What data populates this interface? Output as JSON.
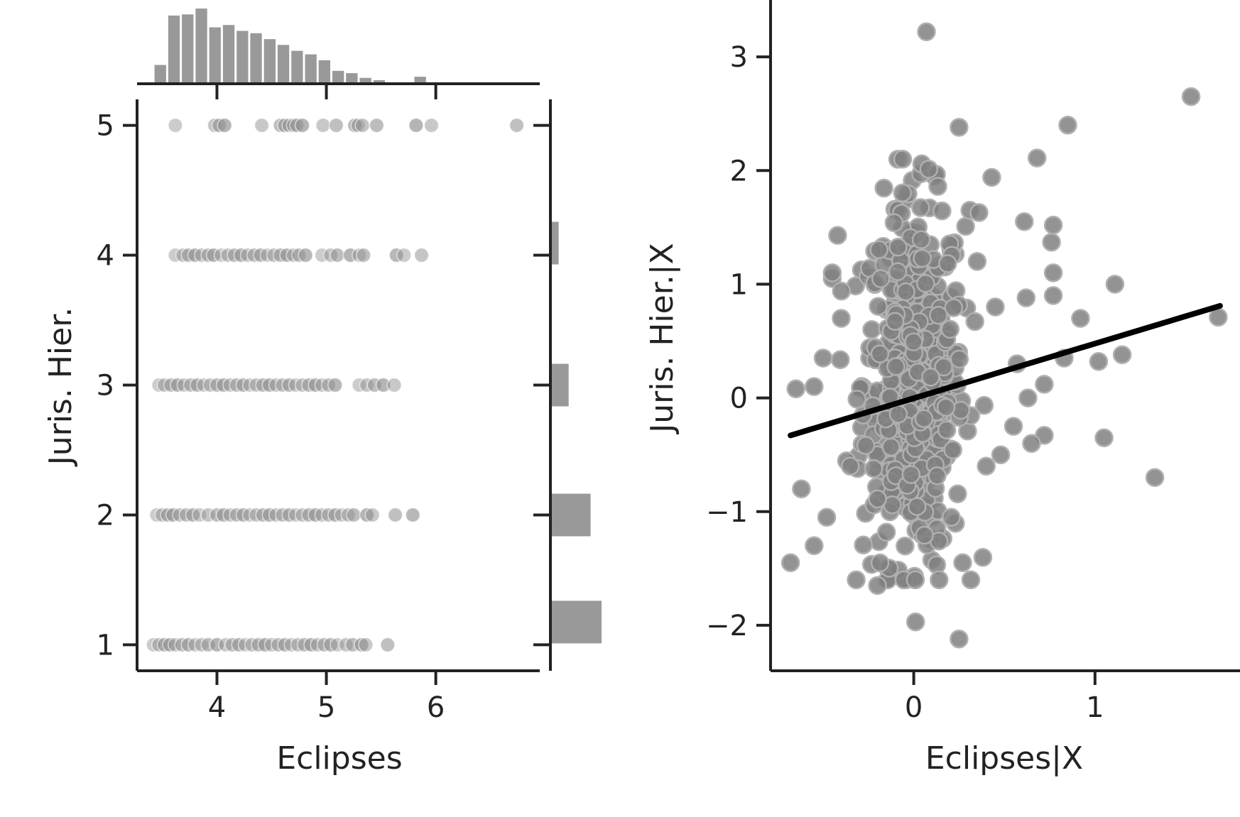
{
  "chart_data": [
    {
      "type": "scatter",
      "panel": "joint",
      "xlabel": "Eclipses",
      "ylabel": "Juris. Hier.",
      "xlim": [
        3.27,
        6.95
      ],
      "ylim": [
        0.8,
        5.2
      ],
      "xticks": [
        4,
        5,
        6
      ],
      "yticks": [
        1,
        2,
        3,
        4,
        5
      ],
      "point_color": "#8f8f8f",
      "rows": [
        {
          "y": 5,
          "x": [
            3.62,
            3.98,
            4.02,
            4.07,
            4.41,
            4.58,
            4.62,
            4.66,
            4.7,
            4.73,
            4.78,
            4.97,
            5.09,
            5.26,
            5.29,
            5.33,
            5.46,
            5.82,
            5.96,
            6.74
          ]
        },
        {
          "y": 4,
          "x": [
            3.62,
            3.69,
            3.74,
            3.8,
            3.86,
            3.92,
            3.97,
            4.04,
            4.1,
            4.16,
            4.22,
            4.28,
            4.34,
            4.4,
            4.46,
            4.52,
            4.58,
            4.64,
            4.7,
            4.75,
            4.81,
            4.96,
            5.04,
            5.1,
            5.22,
            5.3,
            5.34,
            5.64,
            5.71,
            5.87
          ]
        },
        {
          "y": 3,
          "x": [
            3.47,
            3.52,
            3.58,
            3.64,
            3.7,
            3.76,
            3.82,
            3.88,
            3.94,
            4.0,
            4.06,
            4.12,
            4.18,
            4.24,
            4.3,
            4.36,
            4.42,
            4.48,
            4.54,
            4.6,
            4.66,
            4.72,
            4.78,
            4.84,
            4.9,
            4.96,
            5.02,
            5.08,
            5.3,
            5.37,
            5.44,
            5.52,
            5.62
          ]
        },
        {
          "y": 2,
          "x": [
            3.45,
            3.5,
            3.55,
            3.6,
            3.66,
            3.72,
            3.78,
            3.84,
            3.92,
            4.0,
            4.06,
            4.12,
            4.18,
            4.24,
            4.3,
            4.36,
            4.42,
            4.48,
            4.54,
            4.6,
            4.66,
            4.72,
            4.78,
            4.84,
            4.9,
            4.96,
            5.02,
            5.08,
            5.14,
            5.2,
            5.25,
            5.37,
            5.42,
            5.63,
            5.79
          ]
        },
        {
          "y": 1,
          "x": [
            3.42,
            3.47,
            3.52,
            3.57,
            3.62,
            3.68,
            3.74,
            3.8,
            3.86,
            3.92,
            4.0,
            4.08,
            4.14,
            4.2,
            4.26,
            4.32,
            4.38,
            4.44,
            4.5,
            4.56,
            4.62,
            4.68,
            4.74,
            4.8,
            4.86,
            4.92,
            4.98,
            5.04,
            5.1,
            5.18,
            5.24,
            5.32,
            5.36,
            5.56
          ]
        }
      ]
    },
    {
      "type": "bar",
      "panel": "marginal-x",
      "orientation": "vertical",
      "bin_start": 3.42,
      "bin_width": 0.125,
      "counts": [
        16,
        58,
        59,
        64,
        48,
        50,
        45,
        43,
        38,
        33,
        28,
        25,
        20,
        11,
        9,
        5,
        3,
        0,
        0,
        6
      ],
      "bar_color": "#999999"
    },
    {
      "type": "bar",
      "panel": "marginal-y",
      "orientation": "horizontal",
      "categories": [
        1,
        2,
        3,
        4,
        5
      ],
      "values": [
        56,
        44,
        20,
        9,
        0
      ],
      "bar_color": "#999999"
    },
    {
      "type": "scatter",
      "panel": "partial-regression",
      "xlabel": "Eclipses|X",
      "ylabel": "Juris. Hier.|X",
      "xlim": [
        -0.79,
        1.8
      ],
      "ylim": [
        -2.4,
        3.5
      ],
      "xticks": [
        0,
        1
      ],
      "yticks": [
        -2,
        -1,
        0,
        1,
        2,
        3
      ],
      "ytick_labels": [
        "−2",
        "−1",
        "0",
        "1",
        "2",
        "3"
      ],
      "point_color": "#808080",
      "fit_line": {
        "x": [
          -0.68,
          1.69
        ],
        "y": [
          -0.33,
          0.81
        ],
        "color": "#000000"
      },
      "outliers": [
        {
          "x": 0.07,
          "y": 3.22
        },
        {
          "x": 1.53,
          "y": 2.65
        },
        {
          "x": 0.85,
          "y": 2.4
        },
        {
          "x": 0.68,
          "y": 2.11
        },
        {
          "x": 0.25,
          "y": 2.38
        },
        {
          "x": 0.43,
          "y": 1.94
        },
        {
          "x": 0.61,
          "y": 1.55
        },
        {
          "x": 0.77,
          "y": 1.52
        },
        {
          "x": 0.31,
          "y": 1.65
        },
        {
          "x": 0.36,
          "y": 1.63
        },
        {
          "x": 0.76,
          "y": 1.37
        },
        {
          "x": 0.77,
          "y": 1.1
        },
        {
          "x": 0.62,
          "y": 0.88
        },
        {
          "x": 0.77,
          "y": 0.9
        },
        {
          "x": 0.92,
          "y": 0.7
        },
        {
          "x": 1.11,
          "y": 1.0
        },
        {
          "x": 1.68,
          "y": 0.71
        },
        {
          "x": 1.02,
          "y": 0.32
        },
        {
          "x": 1.15,
          "y": 0.38
        },
        {
          "x": 0.83,
          "y": 0.35
        },
        {
          "x": 0.57,
          "y": 0.3
        },
        {
          "x": 0.72,
          "y": 0.12
        },
        {
          "x": 0.63,
          "y": 0.0
        },
        {
          "x": 0.72,
          "y": -0.33
        },
        {
          "x": 0.65,
          "y": -0.4
        },
        {
          "x": 1.05,
          "y": -0.35
        },
        {
          "x": 1.33,
          "y": -0.7
        },
        {
          "x": 0.55,
          "y": -0.25
        },
        {
          "x": 0.48,
          "y": -0.5
        },
        {
          "x": -0.65,
          "y": 0.08
        },
        {
          "x": -0.55,
          "y": 0.1
        },
        {
          "x": -0.5,
          "y": 0.35
        },
        {
          "x": -0.62,
          "y": -0.8
        },
        {
          "x": -0.55,
          "y": -1.3
        },
        {
          "x": -0.68,
          "y": -1.45
        },
        {
          "x": -0.42,
          "y": 1.43
        },
        {
          "x": -0.45,
          "y": 1.1
        },
        {
          "x": 0.01,
          "y": -1.97
        },
        {
          "x": 0.25,
          "y": -2.12
        },
        {
          "x": -0.2,
          "y": -1.65
        },
        {
          "x": 0.14,
          "y": -1.6
        },
        {
          "x": -0.48,
          "y": -1.05
        },
        {
          "x": 0.27,
          "y": -1.45
        },
        {
          "x": 0.35,
          "y": 1.2
        },
        {
          "x": 0.45,
          "y": 0.8
        },
        {
          "x": 0.4,
          "y": -0.6
        },
        {
          "x": -0.4,
          "y": 0.7
        },
        {
          "x": -0.35,
          "y": -0.6
        }
      ],
      "core_cluster": {
        "n": 520,
        "x_mean": 0.0,
        "x_sd": 0.14,
        "y_mean": 0.15,
        "y_sd": 0.78
      }
    }
  ]
}
